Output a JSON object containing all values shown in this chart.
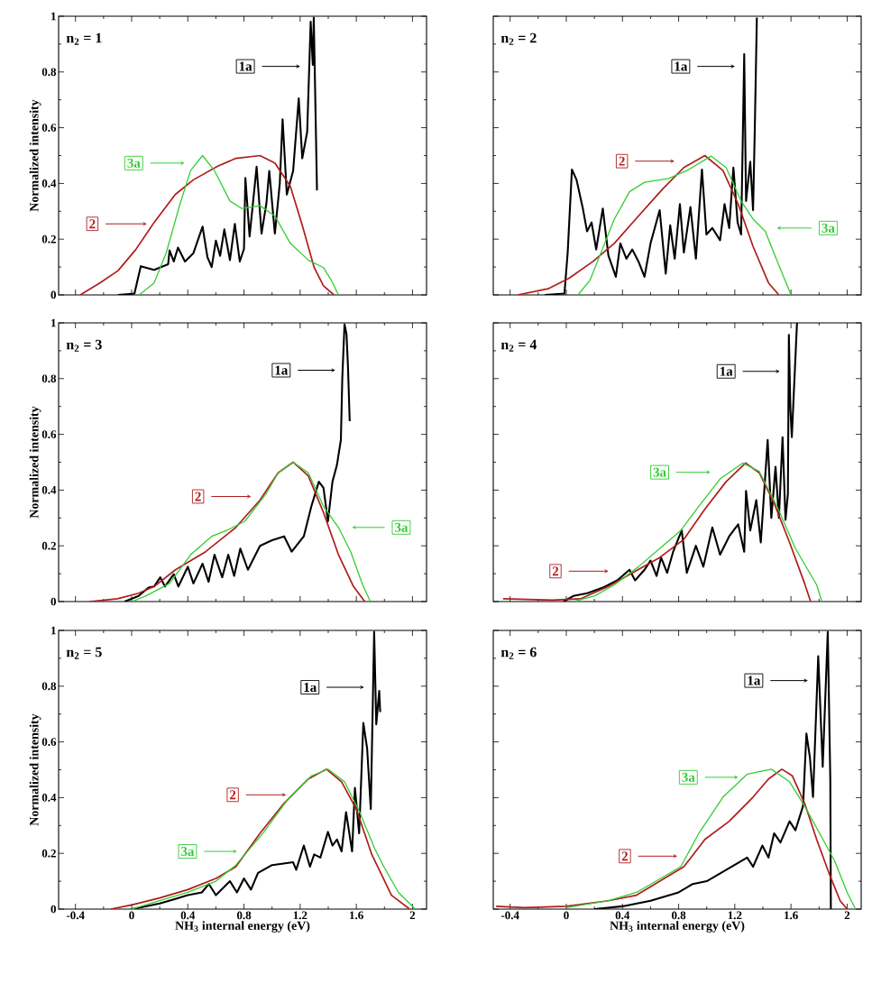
{
  "chart_data": [
    {
      "type": "line",
      "title": "n$_{2}$ = 1",
      "ylabel": "Normalized intensity",
      "xlim": [
        -0.52,
        2.1
      ],
      "ylim": [
        0,
        1
      ],
      "xticks": [
        -0.4,
        0,
        0.4,
        0.8,
        1.2,
        1.6,
        2
      ],
      "yticks": [
        0,
        0.2,
        0.4,
        0.6,
        0.8,
        1
      ],
      "tick_labels": "y",
      "legend": "top left",
      "series": [
        {
          "name": "1a",
          "color": "#000000",
          "x": [
            -0.097,
            0.02,
            0.065,
            0.16,
            0.26,
            0.27,
            0.3,
            0.33,
            0.38,
            0.44,
            0.505,
            0.54,
            0.57,
            0.6,
            0.63,
            0.66,
            0.7,
            0.735,
            0.77,
            0.8,
            0.81,
            0.84,
            0.89,
            0.925,
            0.96,
            0.98,
            1.02,
            1.055,
            1.075,
            1.105,
            1.15,
            1.19,
            1.215,
            1.25,
            1.275,
            1.29,
            1.297,
            1.32
          ],
          "values": [
            0,
            0.005,
            0.103,
            0.09,
            0.11,
            0.16,
            0.12,
            0.17,
            0.12,
            0.15,
            0.245,
            0.135,
            0.1,
            0.195,
            0.14,
            0.235,
            0.125,
            0.255,
            0.12,
            0.165,
            0.42,
            0.21,
            0.46,
            0.22,
            0.33,
            0.445,
            0.22,
            0.4,
            0.63,
            0.36,
            0.445,
            0.705,
            0.49,
            0.585,
            0.98,
            0.825,
            0.995,
            0.375
          ]
        },
        {
          "name": "2",
          "color": "#b01c1c",
          "x": [
            -0.366,
            -0.226,
            -0.097,
            0.03,
            0.16,
            0.31,
            0.44,
            0.613,
            0.742,
            0.914,
            1.02,
            1.13,
            1.215,
            1.3,
            1.366,
            1.44
          ],
          "values": [
            0,
            0.043,
            0.087,
            0.163,
            0.26,
            0.36,
            0.413,
            0.462,
            0.49,
            0.5,
            0.473,
            0.39,
            0.25,
            0.098,
            0.033,
            0
          ]
        },
        {
          "name": "3a",
          "color": "#33cc33",
          "x": [
            0.054,
            0.16,
            0.247,
            0.344,
            0.42,
            0.505,
            0.59,
            0.7,
            0.785,
            0.914,
            1.02,
            1.13,
            1.258,
            1.366,
            1.42,
            1.473
          ],
          "values": [
            0,
            0.043,
            0.152,
            0.326,
            0.446,
            0.5,
            0.446,
            0.337,
            0.31,
            0.32,
            0.283,
            0.185,
            0.125,
            0.098,
            0.054,
            0
          ]
        }
      ]
    },
    {
      "type": "line",
      "title": "n$_{2}$ = 2",
      "xlim": [
        -0.52,
        2.1
      ],
      "ylim": [
        0,
        1
      ],
      "xticks": [
        -0.4,
        0,
        0.4,
        0.8,
        1.2,
        1.6,
        2
      ],
      "yticks": [
        0,
        0.2,
        0.4,
        0.6,
        0.8,
        1
      ],
      "tick_labels": false,
      "legend": "top left",
      "series": [
        {
          "name": "1a",
          "color": "#000000",
          "x": [
            -0.153,
            -0.013,
            0.01,
            0.04,
            0.073,
            0.116,
            0.148,
            0.18,
            0.213,
            0.26,
            0.3,
            0.353,
            0.385,
            0.428,
            0.47,
            0.514,
            0.557,
            0.6,
            0.665,
            0.708,
            0.74,
            0.772,
            0.809,
            0.837,
            0.884,
            0.923,
            0.966,
            0.998,
            1.04,
            1.095,
            1.127,
            1.16,
            1.19,
            1.22,
            1.245,
            1.267,
            1.28,
            1.31,
            1.33,
            1.342,
            1.357
          ],
          "values": [
            0,
            0.005,
            0.152,
            0.45,
            0.413,
            0.315,
            0.228,
            0.26,
            0.163,
            0.31,
            0.141,
            0.065,
            0.185,
            0.13,
            0.163,
            0.12,
            0.065,
            0.185,
            0.304,
            0.076,
            0.25,
            0.13,
            0.326,
            0.152,
            0.315,
            0.13,
            0.45,
            0.217,
            0.24,
            0.196,
            0.326,
            0.24,
            0.457,
            0.26,
            0.217,
            0.864,
            0.337,
            0.478,
            0.304,
            0.587,
            0.995
          ]
        },
        {
          "name": "2",
          "color": "#b01c1c",
          "x": [
            -0.346,
            -0.13,
            0.02,
            0.19,
            0.342,
            0.514,
            0.686,
            0.837,
            0.987,
            1.116,
            1.224,
            1.33,
            1.44,
            1.514
          ],
          "values": [
            0,
            0.022,
            0.06,
            0.12,
            0.185,
            0.283,
            0.38,
            0.457,
            0.5,
            0.446,
            0.326,
            0.174,
            0.043,
            0
          ]
        },
        {
          "name": "3a",
          "color": "#33cc33",
          "x": [
            0.084,
            0.17,
            0.256,
            0.342,
            0.45,
            0.557,
            0.729,
            0.858,
            1.03,
            1.138,
            1.245,
            1.33,
            1.417,
            1.503,
            1.57,
            1.6
          ],
          "values": [
            0,
            0.054,
            0.163,
            0.272,
            0.37,
            0.404,
            0.418,
            0.446,
            0.498,
            0.457,
            0.337,
            0.272,
            0.228,
            0.12,
            0.038,
            0
          ]
        }
      ]
    },
    {
      "type": "line",
      "title": "n$_{2}$ = 3",
      "ylabel": "Normalized intensity",
      "xlim": [
        -0.52,
        2.1
      ],
      "ylim": [
        0,
        1
      ],
      "xticks": [
        -0.4,
        0,
        0.4,
        0.8,
        1.2,
        1.6,
        2
      ],
      "yticks": [
        0,
        0.2,
        0.4,
        0.6,
        0.8,
        1
      ],
      "tick_labels": "y",
      "legend": "top",
      "series": [
        {
          "name": "1a",
          "color": "#000000",
          "x": [
            -0.05,
            0.05,
            0.12,
            0.16,
            0.204,
            0.237,
            0.3,
            0.333,
            0.4,
            0.44,
            0.505,
            0.548,
            0.59,
            0.645,
            0.688,
            0.73,
            0.774,
            0.828,
            0.914,
            1.0,
            1.086,
            1.14,
            1.226,
            1.28,
            1.333,
            1.366,
            1.398,
            1.43,
            1.462,
            1.49,
            1.5,
            1.516,
            1.53,
            1.54,
            1.553
          ],
          "values": [
            0,
            0.02,
            0.05,
            0.054,
            0.087,
            0.054,
            0.098,
            0.054,
            0.125,
            0.065,
            0.136,
            0.071,
            0.168,
            0.087,
            0.168,
            0.092,
            0.19,
            0.114,
            0.2,
            0.22,
            0.234,
            0.179,
            0.234,
            0.342,
            0.43,
            0.408,
            0.288,
            0.43,
            0.49,
            0.58,
            0.8,
            0.995,
            0.96,
            0.85,
            0.647
          ]
        },
        {
          "name": "2",
          "color": "#b01c1c",
          "x": [
            -0.3,
            -0.1,
            0.05,
            0.16,
            0.312,
            0.527,
            0.742,
            0.914,
            1.043,
            1.15,
            1.258,
            1.366,
            1.473,
            1.58,
            1.66
          ],
          "values": [
            0,
            0.01,
            0.03,
            0.054,
            0.114,
            0.179,
            0.266,
            0.364,
            0.462,
            0.5,
            0.451,
            0.32,
            0.168,
            0.054,
            0
          ]
        },
        {
          "name": "3a",
          "color": "#33cc33",
          "x": [
            0.0,
            0.1,
            0.27,
            0.42,
            0.57,
            0.677,
            0.806,
            0.957,
            1.043,
            1.15,
            1.258,
            1.366,
            1.473,
            1.56,
            1.645,
            1.7
          ],
          "values": [
            0,
            0.02,
            0.065,
            0.168,
            0.234,
            0.255,
            0.288,
            0.386,
            0.462,
            0.5,
            0.462,
            0.342,
            0.266,
            0.179,
            0.06,
            0
          ]
        }
      ]
    },
    {
      "type": "line",
      "title": "n$_{2}$ = 4",
      "xlim": [
        -0.52,
        2.1
      ],
      "ylim": [
        0,
        1
      ],
      "xticks": [
        -0.4,
        0,
        0.4,
        0.8,
        1.2,
        1.6,
        2
      ],
      "yticks": [
        0,
        0.2,
        0.4,
        0.6,
        0.8,
        1
      ],
      "tick_labels": false,
      "legend": "bottom left",
      "series": [
        {
          "name": "1a",
          "color": "#000000",
          "x": [
            -0.02,
            0.05,
            0.15,
            0.256,
            0.363,
            0.45,
            0.49,
            0.557,
            0.6,
            0.643,
            0.675,
            0.718,
            0.761,
            0.822,
            0.858,
            0.923,
            0.976,
            1.04,
            1.095,
            1.16,
            1.224,
            1.267,
            1.28,
            1.31,
            1.353,
            1.385,
            1.434,
            1.46,
            1.49,
            1.514,
            1.54,
            1.561,
            1.578,
            1.585,
            1.596,
            1.606,
            1.643
          ],
          "values": [
            0,
            0.02,
            0.03,
            0.049,
            0.076,
            0.114,
            0.076,
            0.114,
            0.147,
            0.092,
            0.158,
            0.103,
            0.179,
            0.255,
            0.103,
            0.2,
            0.125,
            0.266,
            0.168,
            0.234,
            0.277,
            0.179,
            0.397,
            0.255,
            0.364,
            0.212,
            0.58,
            0.3,
            0.484,
            0.3,
            0.59,
            0.293,
            0.386,
            0.957,
            0.69,
            0.59,
            1.0
          ]
        },
        {
          "name": "2",
          "color": "#b01c1c",
          "x": [
            -0.45,
            -0.1,
            0.1,
            0.3,
            0.47,
            0.665,
            0.837,
            0.987,
            1.138,
            1.277,
            1.374,
            1.48,
            1.59,
            1.697,
            1.74
          ],
          "values": [
            0.01,
            0.005,
            0.01,
            0.054,
            0.103,
            0.158,
            0.223,
            0.332,
            0.43,
            0.497,
            0.462,
            0.353,
            0.212,
            0.065,
            0
          ]
        },
        {
          "name": "3a",
          "color": "#33cc33",
          "x": [
            0.05,
            0.2,
            0.342,
            0.514,
            0.665,
            0.815,
            0.944,
            1.095,
            1.256,
            1.374,
            1.5,
            1.632,
            1.783,
            1.82
          ],
          "values": [
            0,
            0.02,
            0.06,
            0.125,
            0.19,
            0.255,
            0.342,
            0.44,
            0.497,
            0.467,
            0.342,
            0.19,
            0.06,
            0
          ]
        }
      ]
    },
    {
      "type": "line",
      "title": "n$_{2}$ = 5",
      "xlabel": "NH$_{3}$ internal energy (eV)",
      "ylabel": "Normalized intensity",
      "xlim": [
        -0.52,
        2.1
      ],
      "ylim": [
        0,
        1
      ],
      "xticks": [
        -0.4,
        0,
        0.4,
        0.8,
        1.2,
        1.6,
        2
      ],
      "yticks": [
        0,
        0.2,
        0.4,
        0.6,
        0.8,
        1
      ],
      "legend": "top",
      "series": [
        {
          "name": "1a",
          "color": "#000000",
          "x": [
            0.0,
            0.1,
            0.2,
            0.3,
            0.4,
            0.5,
            0.55,
            0.6,
            0.7,
            0.75,
            0.8,
            0.85,
            0.9,
            1.0,
            1.15,
            1.172,
            1.226,
            1.27,
            1.3,
            1.344,
            1.398,
            1.43,
            1.462,
            1.495,
            1.527,
            1.57,
            1.59,
            1.62,
            1.65,
            1.677,
            1.703,
            1.727,
            1.742,
            1.763,
            1.77
          ],
          "values": [
            0,
            0.01,
            0.02,
            0.035,
            0.05,
            0.06,
            0.09,
            0.05,
            0.1,
            0.06,
            0.11,
            0.07,
            0.13,
            0.158,
            0.168,
            0.141,
            0.228,
            0.152,
            0.196,
            0.185,
            0.277,
            0.228,
            0.25,
            0.207,
            0.348,
            0.207,
            0.435,
            0.272,
            0.668,
            0.576,
            0.359,
            0.995,
            0.663,
            0.783,
            0.707
          ]
        },
        {
          "name": "2",
          "color": "#b01c1c",
          "x": [
            -0.15,
            0.0,
            0.2,
            0.4,
            0.6,
            0.742,
            0.914,
            1.086,
            1.258,
            1.387,
            1.495,
            1.6,
            1.71,
            1.763,
            1.85,
            1.98
          ],
          "values": [
            0,
            0.015,
            0.04,
            0.07,
            0.11,
            0.152,
            0.272,
            0.38,
            0.467,
            0.502,
            0.457,
            0.359,
            0.196,
            0.141,
            0.05,
            0
          ]
        },
        {
          "name": "3a",
          "color": "#33cc33",
          "x": [
            0.0,
            0.2,
            0.4,
            0.6,
            0.742,
            0.935,
            1.108,
            1.28,
            1.398,
            1.516,
            1.624,
            1.731,
            1.796,
            1.9,
            2.02
          ],
          "values": [
            0,
            0.03,
            0.06,
            0.1,
            0.158,
            0.272,
            0.391,
            0.478,
            0.502,
            0.457,
            0.348,
            0.217,
            0.152,
            0.06,
            0
          ]
        }
      ]
    },
    {
      "type": "line",
      "title": "n$_{2}$ = 6",
      "xlabel": "NH$_{3}$ internal energy (eV)",
      "xlim": [
        -0.52,
        2.1
      ],
      "ylim": [
        0,
        1
      ],
      "xticks": [
        -0.4,
        0,
        0.4,
        0.8,
        1.2,
        1.6,
        2
      ],
      "yticks": [
        0,
        0.2,
        0.4,
        0.6,
        0.8,
        1
      ],
      "tick_labels": "x",
      "legend": "top",
      "series": [
        {
          "name": "1a",
          "color": "#000000",
          "x": [
            0.2,
            0.4,
            0.6,
            0.8,
            0.9,
            1.0,
            1.288,
            1.33,
            1.396,
            1.44,
            1.48,
            1.525,
            1.59,
            1.632,
            1.686,
            1.71,
            1.735,
            1.757,
            1.794,
            1.826,
            1.862,
            1.88,
            1.884
          ],
          "values": [
            0,
            0.01,
            0.03,
            0.06,
            0.09,
            0.1,
            0.185,
            0.152,
            0.228,
            0.185,
            0.272,
            0.239,
            0.315,
            0.283,
            0.37,
            0.63,
            0.543,
            0.402,
            0.908,
            0.511,
            0.995,
            0.467,
            0
          ]
        },
        {
          "name": "2",
          "color": "#b01c1c",
          "x": [
            -0.5,
            -0.3,
            0.0,
            0.3,
            0.5,
            0.837,
            0.987,
            1.16,
            1.33,
            1.44,
            1.535,
            1.61,
            1.697,
            1.783,
            1.87,
            1.95,
            2.0
          ],
          "values": [
            0.01,
            0.005,
            0.01,
            0.03,
            0.05,
            0.152,
            0.25,
            0.315,
            0.402,
            0.467,
            0.502,
            0.478,
            0.38,
            0.25,
            0.13,
            0.03,
            0
          ]
        },
        {
          "name": "3a",
          "color": "#33cc33",
          "x": [
            0.0,
            0.3,
            0.5,
            0.815,
            0.944,
            1.116,
            1.288,
            1.46,
            1.59,
            1.697,
            1.804,
            1.91,
            2.0,
            2.06
          ],
          "values": [
            0.005,
            0.03,
            0.06,
            0.152,
            0.272,
            0.402,
            0.484,
            0.502,
            0.457,
            0.37,
            0.272,
            0.174,
            0.06,
            0
          ]
        }
      ]
    }
  ]
}
